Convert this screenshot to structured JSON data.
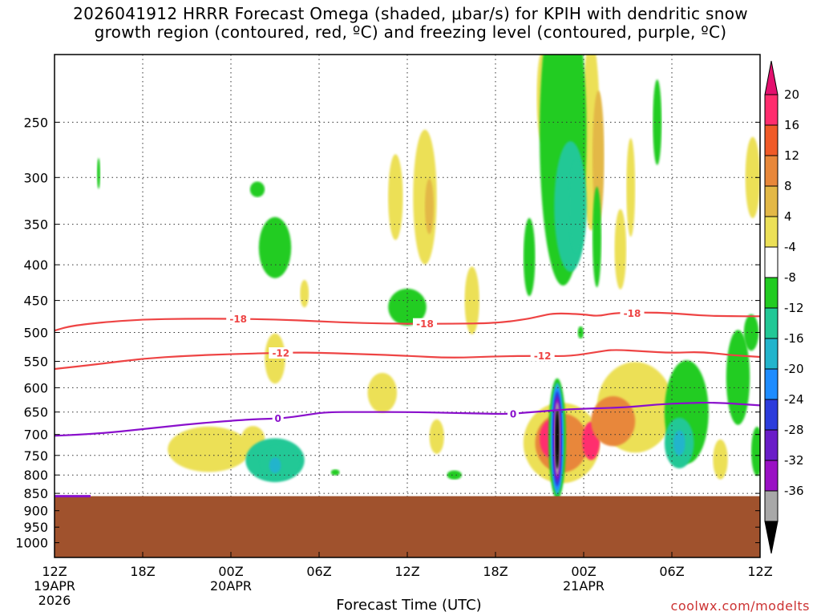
{
  "title_line1": "2026041912 HRRR Forecast Omega (shaded, μbar/s) for KPIH with dendritic snow",
  "title_line2": "growth region (contoured, red, ºC) and freezing level (contoured, purple, ºC)",
  "credit": "coolwx.com/modelts",
  "chart_data": {
    "type": "heatmap",
    "xlabel": "Forecast Time (UTC)",
    "ylabel": "",
    "x_range_hours": [
      0,
      48
    ],
    "y_range_hpa": [
      1050,
      200
    ],
    "y_ticks": [
      250,
      300,
      350,
      400,
      450,
      500,
      550,
      600,
      650,
      700,
      750,
      800,
      850,
      900,
      950,
      1000
    ],
    "x_ticks": [
      {
        "h": 0,
        "label": "12Z",
        "label2": "19APR",
        "label3": "2026"
      },
      {
        "h": 6,
        "label": "18Z"
      },
      {
        "h": 12,
        "label": "00Z",
        "label2": "20APR"
      },
      {
        "h": 18,
        "label": "06Z"
      },
      {
        "h": 24,
        "label": "12Z"
      },
      {
        "h": 30,
        "label": "18Z"
      },
      {
        "h": 36,
        "label": "00Z",
        "label2": "21APR"
      },
      {
        "h": 42,
        "label": "06Z"
      },
      {
        "h": 48,
        "label": "12Z"
      }
    ],
    "grid": true,
    "colorbar": {
      "labels": [
        "20",
        "16",
        "12",
        "8",
        "4",
        "-4",
        "-8",
        "-12",
        "-16",
        "-20",
        "-24",
        "-28",
        "-32",
        "-36"
      ],
      "colors": [
        "#ff2d6e",
        "#f05a28",
        "#e8873a",
        "#e3b846",
        "#ece057",
        "#ffffff",
        "#22cc22",
        "#22c896",
        "#22b4cc",
        "#1e8cff",
        "#2c3cdc",
        "#6a1cc8",
        "#9a10c4",
        "#a8a8a8",
        "#000000"
      ],
      "top_arrow_color": "#e3106e",
      "bottom_arrow_color": "#000000"
    },
    "terrain_pressure_hpa": 858,
    "terrain_color": "#a0522d",
    "contours": [
      {
        "name": "-18",
        "color": "#ee4444",
        "points": [
          [
            0,
            497
          ],
          [
            1,
            490
          ],
          [
            3,
            484
          ],
          [
            6,
            479
          ],
          [
            9,
            478
          ],
          [
            12,
            478
          ],
          [
            15,
            479
          ],
          [
            18,
            482
          ],
          [
            21,
            485
          ],
          [
            24,
            486
          ],
          [
            27,
            486
          ],
          [
            30,
            485
          ],
          [
            32,
            479
          ],
          [
            33,
            474
          ],
          [
            34,
            469
          ],
          [
            36,
            471
          ],
          [
            37,
            474
          ],
          [
            38,
            469
          ],
          [
            40,
            468
          ],
          [
            42,
            469
          ],
          [
            44,
            473
          ],
          [
            46,
            474
          ],
          [
            48,
            474
          ]
        ],
        "labels": [
          [
            12.5,
            478
          ],
          [
            25.2,
            486
          ],
          [
            39.3,
            469
          ]
        ]
      },
      {
        "name": "-12",
        "color": "#ee4444",
        "points": [
          [
            0,
            564
          ],
          [
            3,
            555
          ],
          [
            6,
            545
          ],
          [
            9,
            540
          ],
          [
            12,
            537
          ],
          [
            15,
            535
          ],
          [
            17,
            534
          ],
          [
            21,
            537
          ],
          [
            24,
            540
          ],
          [
            27,
            544
          ],
          [
            30,
            541
          ],
          [
            33,
            540
          ],
          [
            35,
            541
          ],
          [
            37,
            533
          ],
          [
            38,
            529
          ],
          [
            40,
            532
          ],
          [
            42,
            535
          ],
          [
            44,
            533
          ],
          [
            46,
            539
          ],
          [
            48,
            542
          ]
        ],
        "labels": [
          [
            15.4,
            535
          ],
          [
            33.2,
            540
          ]
        ]
      },
      {
        "name": "0",
        "color": "#8a10cc",
        "points": [
          [
            0,
            703
          ],
          [
            3,
            698
          ],
          [
            6,
            688
          ],
          [
            9,
            677
          ],
          [
            12,
            669
          ],
          [
            14,
            665
          ],
          [
            15.5,
            664
          ],
          [
            17,
            657
          ],
          [
            18.5,
            650
          ],
          [
            21,
            650
          ],
          [
            24,
            650
          ],
          [
            27,
            652
          ],
          [
            30,
            654
          ],
          [
            31,
            654
          ],
          [
            33,
            649
          ],
          [
            35,
            644
          ],
          [
            37,
            642
          ],
          [
            39,
            640
          ],
          [
            41,
            634
          ],
          [
            43,
            631
          ],
          [
            45,
            630
          ],
          [
            48,
            636
          ]
        ],
        "labels": [
          [
            15.2,
            664
          ],
          [
            31.2,
            654
          ]
        ]
      }
    ],
    "shaded_cells": [
      {
        "h": 3.0,
        "p": 296,
        "v": -6,
        "rh": 0.12,
        "rp": 15
      },
      {
        "h": 13.8,
        "p": 312,
        "v": -6,
        "rh": 0.5,
        "rp": 8
      },
      {
        "h": 15.0,
        "p": 378,
        "v": -7,
        "rh": 1.1,
        "rp": 38
      },
      {
        "h": 24.0,
        "p": 460,
        "v": -7,
        "rh": 1.3,
        "rp": 28
      },
      {
        "h": 10.5,
        "p": 735,
        "v": 5,
        "rh": 2.8,
        "rp": 55
      },
      {
        "h": 13.5,
        "p": 710,
        "v": 5,
        "rh": 0.8,
        "rp": 30
      },
      {
        "h": 15.0,
        "p": 545,
        "v": 5,
        "rh": 0.7,
        "rp": 45
      },
      {
        "h": 17.0,
        "p": 440,
        "v": 5,
        "rh": 0.3,
        "rp": 20
      },
      {
        "h": 22.3,
        "p": 610,
        "v": 5,
        "rh": 1.0,
        "rp": 40
      },
      {
        "h": 23.2,
        "p": 320,
        "v": 5,
        "rh": 0.5,
        "rp": 45
      },
      {
        "h": 25.2,
        "p": 320,
        "v": 6,
        "rh": 0.8,
        "rp": 70
      },
      {
        "h": 28.4,
        "p": 450,
        "v": 5,
        "rh": 0.5,
        "rp": 50
      },
      {
        "h": 25.5,
        "p": 330,
        "v": 9,
        "rh": 0.3,
        "rp": 30
      },
      {
        "h": 26.0,
        "p": 705,
        "v": 5,
        "rh": 0.5,
        "rp": 40
      },
      {
        "h": 15.0,
        "p": 762,
        "v": -8,
        "rh": 2.0,
        "rp": 55
      },
      {
        "h": 15.3,
        "p": 765,
        "v": -11,
        "rh": 1.3,
        "rp": 40
      },
      {
        "h": 15.0,
        "p": 775,
        "v": -14,
        "rh": 0.4,
        "rp": 20
      },
      {
        "h": 19.1,
        "p": 793,
        "v": -6,
        "rh": 0.3,
        "rp": 8
      },
      {
        "h": 27.2,
        "p": 800,
        "v": -6,
        "rh": 0.5,
        "rp": 12
      },
      {
        "h": 34.5,
        "p": 720,
        "v": 5,
        "rh": 2.6,
        "rp": 95
      },
      {
        "h": 34.5,
        "p": 720,
        "v": 13,
        "rh": 1.8,
        "rp": 70
      },
      {
        "h": 33.8,
        "p": 710,
        "v": 21,
        "rh": 0.8,
        "rp": 45
      },
      {
        "h": 36.5,
        "p": 715,
        "v": 21,
        "rh": 0.6,
        "rp": 45
      },
      {
        "h": 39.5,
        "p": 640,
        "v": 5,
        "rh": 2.6,
        "rp": 95
      },
      {
        "h": 38.0,
        "p": 670,
        "v": 13,
        "rh": 1.5,
        "rp": 55
      },
      {
        "h": 36.5,
        "p": 260,
        "v": 5,
        "rh": 0.6,
        "rp": 80
      },
      {
        "h": 37.0,
        "p": 280,
        "v": 9,
        "rh": 0.4,
        "rp": 60
      },
      {
        "h": 38.5,
        "p": 380,
        "v": 5,
        "rh": 0.4,
        "rp": 50
      },
      {
        "h": 33.2,
        "p": 230,
        "v": 5,
        "rh": 0.4,
        "rp": 35
      },
      {
        "h": 39.2,
        "p": 310,
        "v": 5,
        "rh": 0.3,
        "rp": 50
      },
      {
        "h": 47.5,
        "p": 300,
        "v": 5,
        "rh": 0.5,
        "rp": 40
      },
      {
        "h": 34.6,
        "p": 260,
        "v": -7,
        "rh": 1.6,
        "rp": 120
      },
      {
        "h": 35.1,
        "p": 330,
        "v": -8,
        "rh": 1.1,
        "rp": 70
      },
      {
        "h": 35.5,
        "p": 330,
        "v": -11,
        "rh": 0.5,
        "rp": 50
      },
      {
        "h": 32.3,
        "p": 390,
        "v": -6,
        "rh": 0.4,
        "rp": 50
      },
      {
        "h": 36.9,
        "p": 365,
        "v": -6,
        "rh": 0.3,
        "rp": 60
      },
      {
        "h": 41.0,
        "p": 250,
        "v": -6,
        "rh": 0.3,
        "rp": 35
      },
      {
        "h": 35.8,
        "p": 500,
        "v": -6,
        "rh": 0.2,
        "rp": 10
      },
      {
        "h": 34.2,
        "p": 710,
        "v": -6,
        "rh": 0.6,
        "rp": 140
      },
      {
        "h": 34.2,
        "p": 710,
        "v": -12,
        "rh": 0.45,
        "rp": 130
      },
      {
        "h": 34.2,
        "p": 710,
        "v": -18,
        "rh": 0.38,
        "rp": 120
      },
      {
        "h": 34.2,
        "p": 710,
        "v": -22,
        "rh": 0.32,
        "rp": 110
      },
      {
        "h": 34.2,
        "p": 710,
        "v": -26,
        "rh": 0.27,
        "rp": 100
      },
      {
        "h": 34.2,
        "p": 710,
        "v": -30,
        "rh": 0.22,
        "rp": 92
      },
      {
        "h": 34.2,
        "p": 710,
        "v": -34,
        "rh": 0.18,
        "rp": 85
      },
      {
        "h": 34.2,
        "p": 710,
        "v": -38,
        "rh": 0.14,
        "rp": 70
      },
      {
        "h": 43.0,
        "p": 650,
        "v": -7,
        "rh": 1.5,
        "rp": 110
      },
      {
        "h": 42.5,
        "p": 720,
        "v": -9,
        "rh": 1.0,
        "rp": 60
      },
      {
        "h": 42.5,
        "p": 720,
        "v": -13,
        "rh": 0.4,
        "rp": 30
      },
      {
        "h": 46.5,
        "p": 580,
        "v": -7,
        "rh": 0.8,
        "rp": 90
      },
      {
        "h": 47.4,
        "p": 500,
        "v": -7,
        "rh": 0.5,
        "rp": 30
      },
      {
        "h": 47.8,
        "p": 740,
        "v": -6,
        "rh": 0.4,
        "rp": 60
      },
      {
        "h": 45.3,
        "p": 760,
        "v": 5,
        "rh": 0.5,
        "rp": 50
      }
    ]
  }
}
